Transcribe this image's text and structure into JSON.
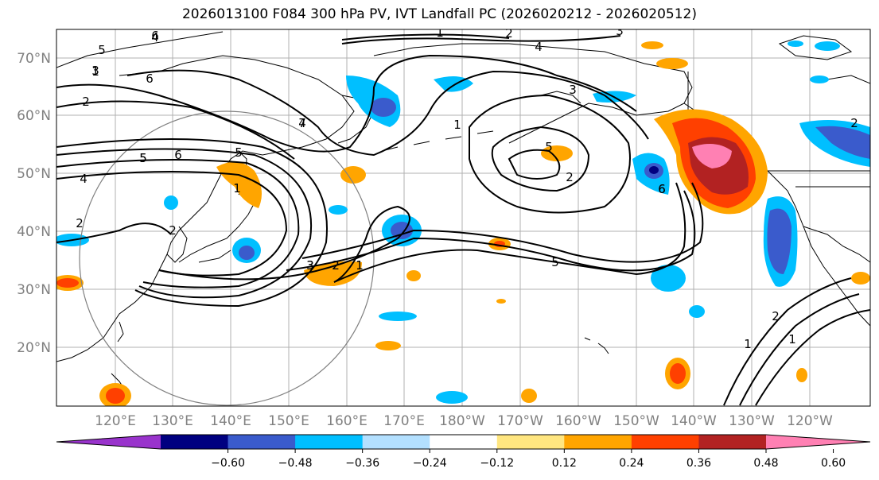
{
  "title": "2026013100 F084 300 hPa PV, IVT Landfall PC (2026020212 - 2026020512)",
  "lat_labels": [
    "70°N",
    "60°N",
    "50°N",
    "40°N",
    "30°N",
    "20°N"
  ],
  "lon_labels": [
    "120°E",
    "130°E",
    "140°E",
    "150°E",
    "160°E",
    "170°E",
    "180°W",
    "170°W",
    "160°W",
    "150°W",
    "140°W",
    "130°W",
    "120°W"
  ],
  "colorbar": {
    "colors": [
      "#9933cc",
      "#000080",
      "#3a5bcc",
      "#00bfff",
      "#b3e0ff",
      "#ffffff",
      "#ffe680",
      "#ffa500",
      "#ff4000",
      "#b22222",
      "#ff80b3"
    ],
    "ticks": [
      "−0.60",
      "−0.48",
      "−0.36",
      "−0.24",
      "−0.12",
      "0.12",
      "0.24",
      "0.36",
      "0.48",
      "0.60"
    ]
  },
  "contour_labels": [
    "1",
    "2",
    "3",
    "4",
    "5",
    "6",
    "7",
    "1",
    "2",
    "4",
    "3",
    "5",
    "6",
    "5",
    "4",
    "1",
    "2",
    "2",
    "3",
    "2",
    "1",
    "5",
    "2",
    "3",
    "5",
    "6",
    "2",
    "1",
    "1",
    "2",
    "1",
    "6",
    "5",
    "4",
    "3",
    "2",
    "1",
    "6"
  ]
}
